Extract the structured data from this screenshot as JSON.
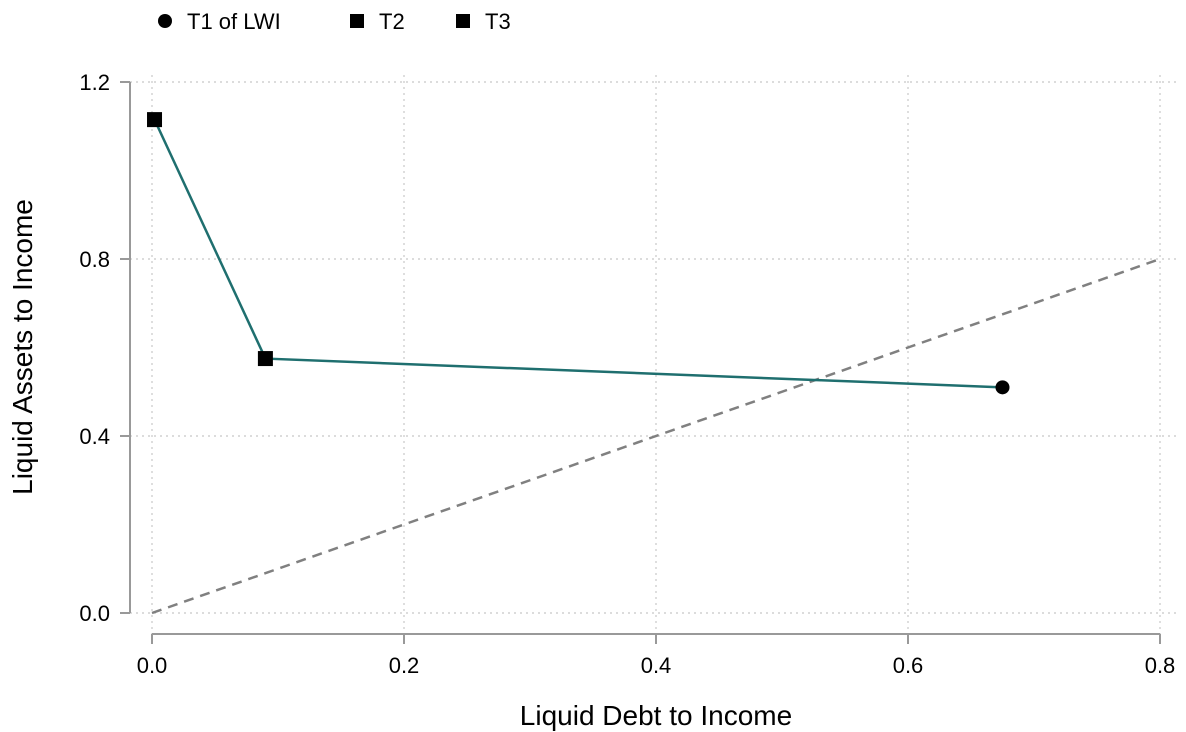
{
  "chart_data": {
    "type": "line",
    "xlabel": "Liquid Debt to Income",
    "ylabel": "Liquid Assets to Income",
    "xlim": [
      0,
      0.8
    ],
    "ylim": [
      0,
      1.2
    ],
    "x_ticks": [
      "0.0",
      "0.2",
      "0.4",
      "0.6",
      "0.8"
    ],
    "y_ticks": [
      "0.0",
      "0.4",
      "0.8",
      "1.2"
    ],
    "grid": true,
    "legend_position": "top-left",
    "legend": [
      {
        "label": "T1 of LWI",
        "marker": "circle"
      },
      {
        "label": "T2",
        "marker": "square"
      },
      {
        "label": "T3",
        "marker": "square"
      }
    ],
    "series": [
      {
        "line_color": "#1f6f6f",
        "points": [
          {
            "x": 0.675,
            "y": 0.51,
            "marker": "circle"
          },
          {
            "x": 0.09,
            "y": 0.575,
            "marker": "square"
          },
          {
            "x": 0.002,
            "y": 1.115,
            "marker": "square"
          }
        ]
      }
    ],
    "reference_line": {
      "x": [
        0,
        0.8
      ],
      "y": [
        0,
        0.8
      ],
      "style": "dashed",
      "color": "#808080"
    }
  }
}
